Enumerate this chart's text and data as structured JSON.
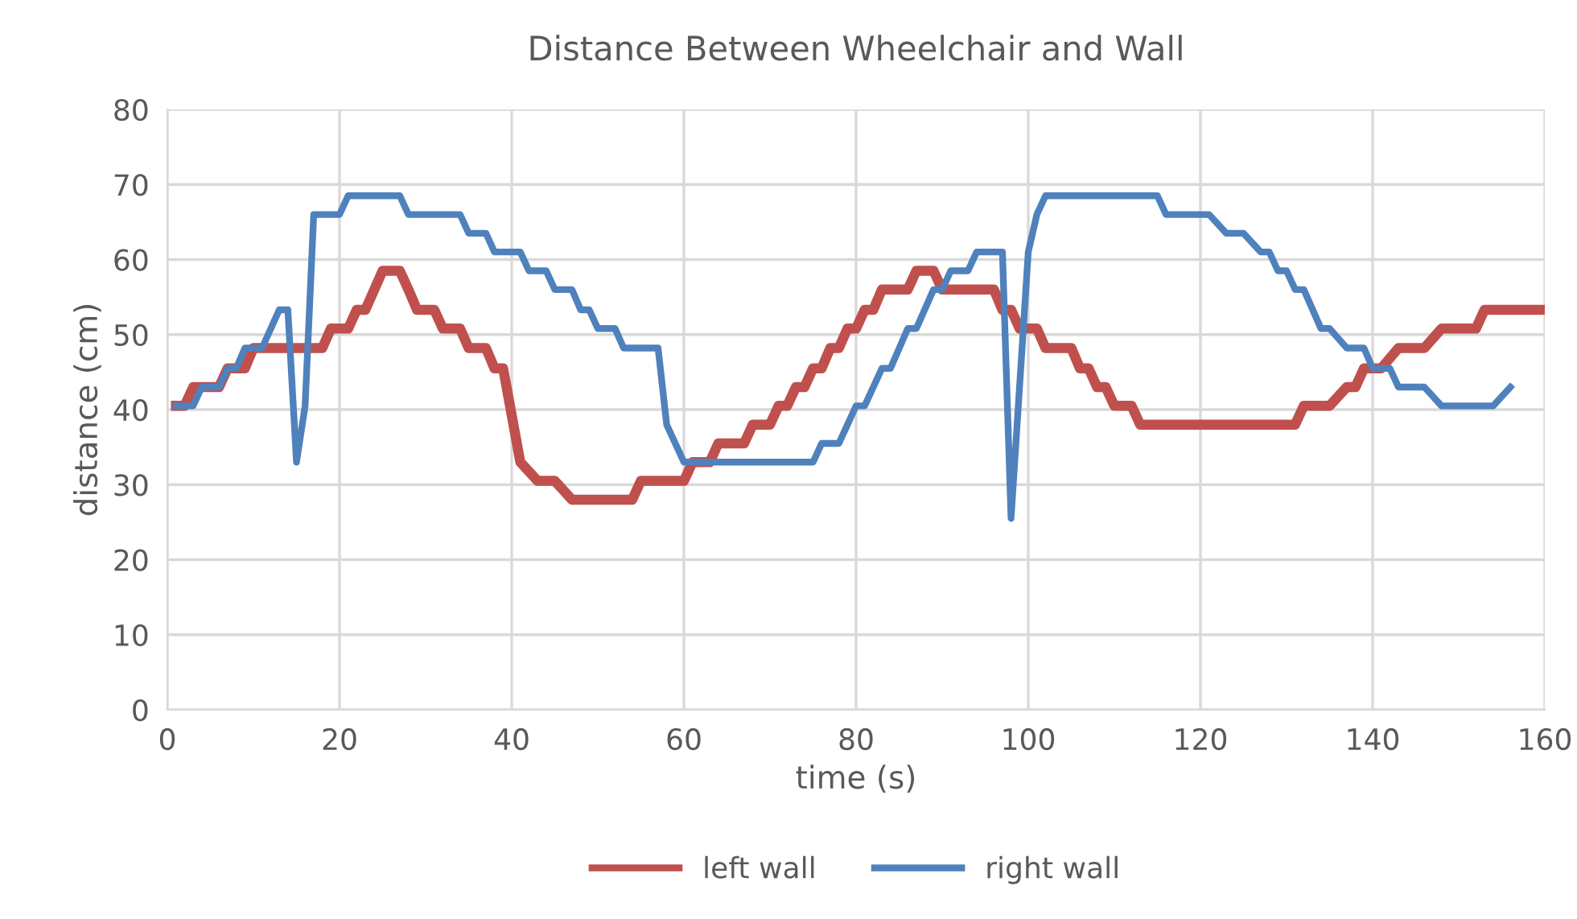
{
  "chart_data": {
    "type": "line",
    "title": "Distance Between Wheelchair and Wall",
    "xlabel": "time (s)",
    "ylabel": "distance (cm)",
    "xlim": [
      0,
      160
    ],
    "xticks": [
      0,
      20,
      40,
      60,
      80,
      100,
      120,
      140,
      160
    ],
    "ylim": [
      0,
      80
    ],
    "yticks": [
      0,
      10,
      20,
      30,
      40,
      50,
      60,
      70,
      80
    ],
    "grid": true,
    "legend": "bottom",
    "marker": "none",
    "line_style": "solid",
    "series": [
      {
        "name": "left wall",
        "color": "#c0504d",
        "x": [
          1,
          2,
          3,
          6,
          7,
          9,
          10,
          18,
          19,
          21,
          22,
          23,
          25,
          27,
          28,
          29,
          31,
          32,
          34,
          35,
          37,
          38,
          39,
          41,
          43,
          45,
          47,
          54,
          55,
          60,
          61,
          63,
          64,
          67,
          68,
          70,
          71,
          72,
          73,
          74,
          75,
          76,
          77,
          78,
          79,
          80,
          81,
          82,
          83,
          86,
          87,
          89,
          90,
          96,
          97,
          98,
          99,
          101,
          102,
          105,
          106,
          107,
          108,
          109,
          110,
          112,
          113,
          131,
          132,
          135,
          137,
          138,
          139,
          141,
          143,
          146,
          148,
          152,
          153,
          160
        ],
        "values": [
          40.5,
          40.5,
          43,
          43,
          45.5,
          45.5,
          48.2,
          48.2,
          50.8,
          50.8,
          53.3,
          53.3,
          58.5,
          58.5,
          56,
          53.3,
          53.3,
          50.8,
          50.8,
          48.2,
          48.2,
          45.5,
          45.5,
          33,
          30.5,
          30.5,
          28,
          28,
          30.5,
          30.5,
          33,
          33,
          35.5,
          35.5,
          38,
          38,
          40.5,
          40.5,
          43,
          43,
          45.5,
          45.5,
          48.2,
          48.2,
          50.8,
          50.8,
          53.3,
          53.3,
          56,
          56,
          58.5,
          58.5,
          56,
          56,
          53.3,
          53.3,
          50.8,
          50.8,
          48.2,
          48.2,
          45.5,
          45.5,
          43,
          43,
          40.5,
          40.5,
          38,
          38,
          40.5,
          40.5,
          43,
          43,
          45.5,
          45.5,
          48.2,
          48.2,
          50.8,
          50.8,
          53.3,
          53.3
        ]
      },
      {
        "name": "right wall",
        "color": "#4f81bd",
        "x": [
          1,
          3,
          4,
          6,
          7,
          8,
          9,
          11,
          13,
          14,
          15,
          16,
          17,
          20,
          21,
          27,
          28,
          34,
          35,
          37,
          38,
          41,
          42,
          44,
          45,
          47,
          48,
          49,
          50,
          52,
          53,
          57,
          58,
          60,
          75,
          76,
          78,
          79,
          80,
          81,
          83,
          84,
          86,
          87,
          89,
          90,
          91,
          93,
          94,
          97,
          98,
          100,
          101,
          102,
          115,
          116,
          121,
          123,
          125,
          127,
          128,
          129,
          130,
          131,
          132,
          134,
          135,
          137,
          139,
          140,
          142,
          143,
          146,
          148,
          154,
          156
        ],
        "values": [
          40.5,
          40.5,
          43,
          43,
          45.5,
          45.5,
          48.2,
          48.2,
          53.3,
          53.3,
          33,
          40.5,
          66,
          66,
          68.5,
          68.5,
          66,
          66,
          63.5,
          63.5,
          61,
          61,
          58.5,
          58.5,
          56,
          56,
          53.3,
          53.3,
          50.8,
          50.8,
          48.2,
          48.2,
          38,
          33,
          33,
          35.5,
          35.5,
          38,
          40.5,
          40.5,
          45.5,
          45.5,
          50.8,
          50.8,
          56,
          56,
          58.5,
          58.5,
          61,
          61,
          25.5,
          61,
          66,
          68.5,
          68.5,
          66,
          66,
          63.5,
          63.5,
          61,
          61,
          58.5,
          58.5,
          56,
          56,
          50.8,
          50.8,
          48.2,
          48.2,
          45.5,
          45.5,
          43,
          43,
          40.5,
          40.5,
          43
        ]
      }
    ]
  }
}
